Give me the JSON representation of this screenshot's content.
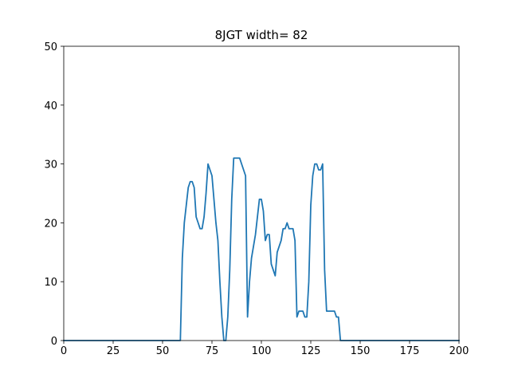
{
  "chart_data": {
    "type": "line",
    "title": "8JGT width= 82",
    "xlabel": "",
    "ylabel": "",
    "xlim": [
      0,
      200
    ],
    "ylim": [
      0,
      50
    ],
    "x_ticks": [
      "0",
      "25",
      "50",
      "75",
      "100",
      "125",
      "150",
      "175",
      "200"
    ],
    "y_ticks": [
      "0",
      "10",
      "20",
      "30",
      "40",
      "50"
    ],
    "grid": false,
    "series": [
      {
        "color": "#1f77b4",
        "x": [
          0,
          59,
          60,
          61,
          62,
          63,
          64,
          65,
          66,
          67,
          68,
          69,
          70,
          71,
          72,
          73,
          74,
          75,
          76,
          77,
          78,
          79,
          80,
          81,
          82,
          83,
          84,
          85,
          86,
          87,
          88,
          89,
          90,
          91,
          92,
          93,
          94,
          95,
          96,
          97,
          98,
          99,
          100,
          101,
          102,
          103,
          104,
          105,
          106,
          107,
          108,
          109,
          110,
          111,
          112,
          113,
          114,
          115,
          116,
          117,
          118,
          119,
          120,
          121,
          122,
          123,
          124,
          125,
          126,
          127,
          128,
          129,
          130,
          131,
          132,
          133,
          134,
          135,
          136,
          137,
          138,
          139,
          140,
          141,
          142,
          200
        ],
        "y": [
          0,
          0,
          14,
          20,
          23,
          26,
          27,
          27,
          26,
          21,
          20,
          19,
          19,
          21,
          25,
          30,
          29,
          28,
          24,
          20,
          17,
          10,
          4,
          0,
          0,
          4,
          12,
          24,
          31,
          31,
          31,
          31,
          30,
          29,
          28,
          4,
          10,
          14,
          16,
          18,
          21,
          24,
          24,
          22,
          17,
          18,
          18,
          13,
          12,
          11,
          15,
          16,
          17,
          19,
          19,
          20,
          19,
          19,
          19,
          17,
          4,
          5,
          5,
          5,
          4,
          4,
          10,
          23,
          28,
          30,
          30,
          29,
          29,
          30,
          12,
          5,
          5,
          5,
          5,
          5,
          4,
          4,
          0,
          0,
          0,
          0
        ]
      }
    ]
  }
}
